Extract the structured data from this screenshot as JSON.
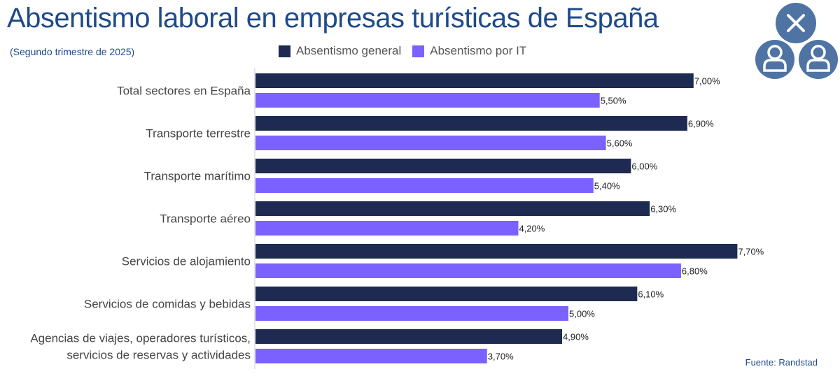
{
  "chart_data": {
    "type": "bar",
    "orientation": "horizontal",
    "title": "Absentismo laboral en empresas turísticas de España",
    "subtitle": "(Segundo trimestre de 2025)",
    "categories": [
      [
        "Total sectores en España"
      ],
      [
        "Transporte terrestre"
      ],
      [
        "Transporte marítimo"
      ],
      [
        "Transporte aéreo"
      ],
      [
        "Servicios de alojamiento"
      ],
      [
        "Servicios de comidas y bebidas"
      ],
      [
        "Agencias de viajes, operadores turísticos,",
        "servicios de reservas y actividades"
      ]
    ],
    "series": [
      {
        "name": "Absentismo general",
        "color": "#1f2a52",
        "values": [
          7.0,
          6.9,
          6.0,
          6.3,
          7.7,
          6.1,
          4.9
        ],
        "labels": [
          "7,00%",
          "6,90%",
          "6,00%",
          "6,30%",
          "7,70%",
          "6,10%",
          "4,90%"
        ]
      },
      {
        "name": "Absentismo por IT",
        "color": "#7b61ff",
        "values": [
          5.5,
          5.6,
          5.4,
          4.2,
          6.8,
          5.0,
          3.7
        ],
        "labels": [
          "5,50%",
          "5,60%",
          "5,40%",
          "4,20%",
          "6,80%",
          "5,00%",
          "3,70%"
        ]
      }
    ],
    "xlim": [
      0,
      9.3
    ],
    "grid": false,
    "legend_position": "top"
  },
  "source": "Fuente: Randstad",
  "logo": {
    "icon": "x-circle-and-two-users-icon",
    "color": "#4f74a3"
  }
}
